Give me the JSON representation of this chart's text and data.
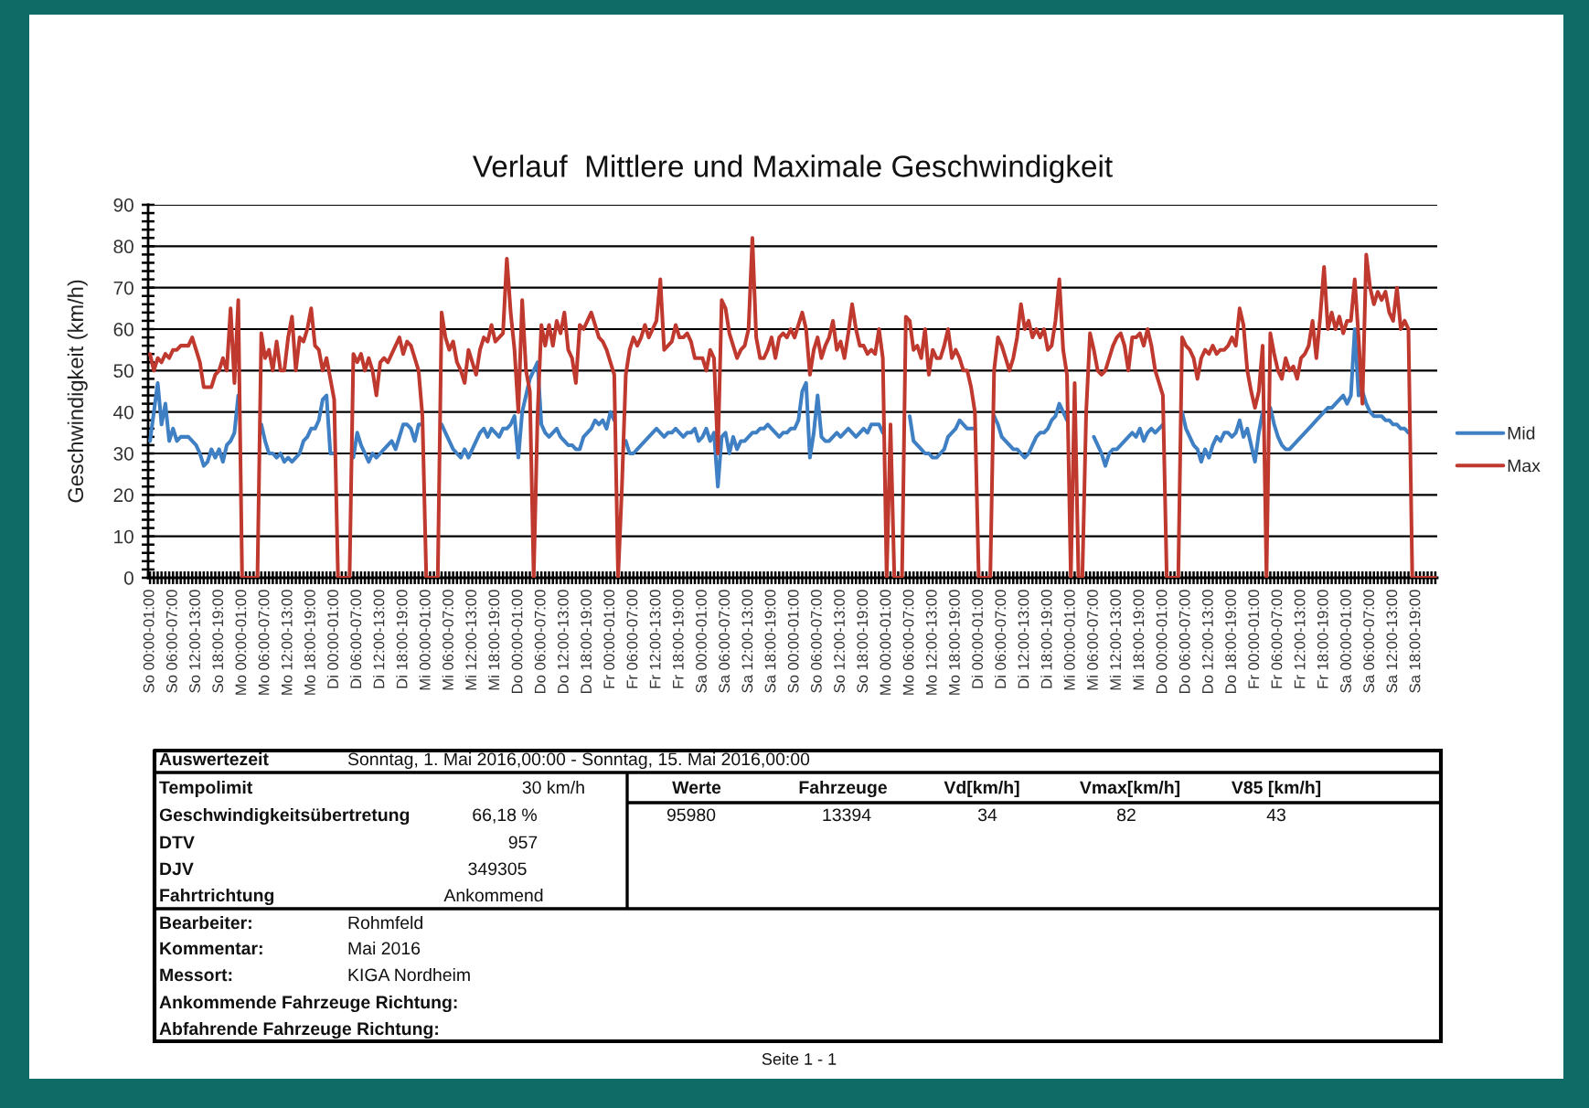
{
  "chart_data": [
    {
      "type": "line",
      "title": "Verlauf  Mittlere und Maximale Geschwindigkeit",
      "ylabel": "Geschwindigkeit (km/h)",
      "categories": [
        "So 00:00-01:00",
        null,
        null,
        null,
        null,
        null,
        "So 06:00-07:00",
        null,
        null,
        null,
        null,
        null,
        "So 12:00-13:00",
        null,
        null,
        null,
        null,
        null,
        "So 18:00-19:00",
        null,
        null,
        null,
        null,
        null,
        "Mo 00:00-01:00",
        null,
        null,
        null,
        null,
        null,
        "Mo 06:00-07:00",
        null,
        null,
        null,
        null,
        null,
        "Mo 12:00-13:00",
        null,
        null,
        null,
        null,
        null,
        "Mo 18:00-19:00",
        null,
        null,
        null,
        null,
        null,
        "Di 00:00-01:00",
        null,
        null,
        null,
        null,
        null,
        "Di 06:00-07:00",
        null,
        null,
        null,
        null,
        null,
        "Di 12:00-13:00",
        null,
        null,
        null,
        null,
        null,
        "Di 18:00-19:00",
        null,
        null,
        null,
        null,
        null,
        "Mi 00:00-01:00",
        null,
        null,
        null,
        null,
        null,
        "Mi 06:00-07:00",
        null,
        null,
        null,
        null,
        null,
        "Mi 12:00-13:00",
        null,
        null,
        null,
        null,
        null,
        "Mi 18:00-19:00",
        null,
        null,
        null,
        null,
        null,
        "Do 00:00-01:00",
        null,
        null,
        null,
        null,
        null,
        "Do 06:00-07:00",
        null,
        null,
        null,
        null,
        null,
        "Do 12:00-13:00",
        null,
        null,
        null,
        null,
        null,
        "Do 18:00-19:00",
        null,
        null,
        null,
        null,
        null,
        "Fr 00:00-01:00",
        null,
        null,
        null,
        null,
        null,
        "Fr 06:00-07:00",
        null,
        null,
        null,
        null,
        null,
        "Fr 12:00-13:00",
        null,
        null,
        null,
        null,
        null,
        "Fr 18:00-19:00",
        null,
        null,
        null,
        null,
        null,
        "Sa 00:00-01:00",
        null,
        null,
        null,
        null,
        null,
        "Sa 06:00-07:00",
        null,
        null,
        null,
        null,
        null,
        "Sa 12:00-13:00",
        null,
        null,
        null,
        null,
        null,
        "Sa 18:00-19:00",
        null,
        null,
        null,
        null,
        null,
        "So 00:00-01:00",
        null,
        null,
        null,
        null,
        null,
        "So 06:00-07:00",
        null,
        null,
        null,
        null,
        null,
        "So 12:00-13:00",
        null,
        null,
        null,
        null,
        null,
        "So 18:00-19:00",
        null,
        null,
        null,
        null,
        null,
        "Mo 00:00-01:00",
        null,
        null,
        null,
        null,
        null,
        "Mo 06:00-07:00",
        null,
        null,
        null,
        null,
        null,
        "Mo 12:00-13:00",
        null,
        null,
        null,
        null,
        null,
        "Mo 18:00-19:00",
        null,
        null,
        null,
        null,
        null,
        "Di 00:00-01:00",
        null,
        null,
        null,
        null,
        null,
        "Di 06:00-07:00",
        null,
        null,
        null,
        null,
        null,
        "Di 12:00-13:00",
        null,
        null,
        null,
        null,
        null,
        "Di 18:00-19:00",
        null,
        null,
        null,
        null,
        null,
        "Mi 00:00-01:00",
        null,
        null,
        null,
        null,
        null,
        "Mi 06:00-07:00",
        null,
        null,
        null,
        null,
        null,
        "Mi 12:00-13:00",
        null,
        null,
        null,
        null,
        null,
        "Mi 18:00-19:00",
        null,
        null,
        null,
        null,
        null,
        "Do 00:00-01:00",
        null,
        null,
        null,
        null,
        null,
        "Do 06:00-07:00",
        null,
        null,
        null,
        null,
        null,
        "Do 12:00-13:00",
        null,
        null,
        null,
        null,
        null,
        "Do 18:00-19:00",
        null,
        null,
        null,
        null,
        null,
        "Fr 00:00-01:00",
        null,
        null,
        null,
        null,
        null,
        "Fr 06:00-07:00",
        null,
        null,
        null,
        null,
        null,
        "Fr 12:00-13:00",
        null,
        null,
        null,
        null,
        null,
        "Fr 18:00-19:00",
        null,
        null,
        null,
        null,
        null,
        "Sa 00:00-01:00",
        null,
        null,
        null,
        null,
        null,
        "Sa 06:00-07:00",
        null,
        null,
        null,
        null,
        null,
        "Sa 12:00-13:00",
        null,
        null,
        null,
        null,
        null,
        "Sa 18:00-19:00",
        null,
        null,
        null,
        null,
        null
      ],
      "ylim": [
        0,
        90
      ],
      "yticks": [
        0,
        10,
        20,
        30,
        40,
        50,
        60,
        70,
        80,
        90
      ],
      "grid": "y",
      "legend": "right",
      "series": [
        {
          "name": "Mid",
          "color": "#3f7fc4",
          "values": [
            33,
            40,
            47,
            37,
            42,
            33,
            36,
            33,
            34,
            34,
            34,
            33,
            32,
            30,
            27,
            28,
            31,
            29,
            31,
            28,
            32,
            33,
            35,
            44,
            null,
            null,
            null,
            null,
            null,
            37,
            33,
            30,
            30,
            29,
            30,
            28,
            29,
            28,
            29,
            30,
            33,
            34,
            36,
            36,
            38,
            43,
            44,
            30,
            30,
            null,
            null,
            null,
            null,
            29,
            35,
            32,
            30,
            28,
            30,
            29,
            30,
            31,
            32,
            33,
            31,
            34,
            37,
            37,
            36,
            33,
            37,
            37,
            null,
            null,
            null,
            null,
            37,
            35,
            33,
            31,
            30,
            29,
            31,
            29,
            31,
            33,
            35,
            36,
            34,
            36,
            35,
            34,
            36,
            36,
            37,
            39,
            29,
            40,
            44,
            48,
            50,
            52,
            37,
            35,
            34,
            35,
            36,
            34,
            33,
            32,
            32,
            31,
            31,
            34,
            35,
            36,
            38,
            37,
            38,
            36,
            40,
            38,
            null,
            null,
            33,
            30,
            30,
            31,
            32,
            33,
            34,
            35,
            36,
            35,
            34,
            35,
            35,
            36,
            35,
            34,
            35,
            35,
            36,
            33,
            34,
            36,
            33,
            35,
            22,
            34,
            35,
            30,
            34,
            31,
            33,
            33,
            34,
            35,
            35,
            36,
            36,
            37,
            36,
            35,
            34,
            35,
            35,
            36,
            36,
            38,
            45,
            47,
            29,
            35,
            44,
            34,
            33,
            33,
            34,
            35,
            34,
            35,
            36,
            35,
            34,
            35,
            36,
            35,
            37,
            37,
            37,
            35,
            null,
            null,
            null,
            null,
            null,
            null,
            39,
            33,
            32,
            31,
            30,
            30,
            29,
            29,
            30,
            31,
            34,
            35,
            36,
            38,
            37,
            36,
            36,
            36,
            null,
            null,
            null,
            null,
            39,
            37,
            34,
            33,
            32,
            31,
            31,
            30,
            29,
            30,
            32,
            34,
            35,
            35,
            36,
            38,
            39,
            42,
            40,
            38,
            null,
            null,
            null,
            null,
            null,
            null,
            34,
            32,
            30,
            27,
            30,
            31,
            31,
            32,
            33,
            34,
            35,
            34,
            36,
            33,
            35,
            36,
            35,
            36,
            37,
            null,
            null,
            null,
            null,
            40,
            36,
            34,
            32,
            31,
            28,
            31,
            29,
            32,
            34,
            33,
            35,
            35,
            34,
            35,
            38,
            34,
            36,
            32,
            28,
            35,
            40,
            null,
            41,
            37,
            34,
            32,
            31,
            31,
            32,
            33,
            34,
            35,
            36,
            37,
            38,
            39,
            40,
            41,
            41,
            42,
            43,
            44,
            42,
            44,
            60,
            44,
            45,
            42,
            40,
            39,
            39,
            39,
            38,
            38,
            37,
            37,
            36,
            36,
            35,
            null,
            null,
            null,
            null,
            null,
            null,
            null
          ]
        },
        {
          "name": "Max",
          "color": "#c0392f",
          "values": [
            54,
            50,
            53,
            52,
            54,
            53,
            55,
            55,
            56,
            56,
            56,
            58,
            55,
            52,
            46,
            46,
            46,
            49,
            50,
            53,
            50,
            65,
            47,
            67,
            0,
            0,
            0,
            0,
            0,
            59,
            53,
            55,
            50,
            57,
            50,
            50,
            58,
            63,
            50,
            58,
            57,
            60,
            65,
            56,
            55,
            50,
            53,
            48,
            43,
            0,
            0,
            0,
            0,
            54,
            52,
            54,
            50,
            53,
            50,
            44,
            52,
            53,
            52,
            54,
            56,
            58,
            54,
            57,
            56,
            53,
            50,
            39,
            0,
            0,
            0,
            0,
            64,
            58,
            55,
            57,
            52,
            50,
            47,
            55,
            52,
            49,
            55,
            58,
            57,
            61,
            57,
            58,
            59,
            77,
            64,
            55,
            40,
            67,
            50,
            45,
            0,
            39,
            61,
            56,
            61,
            56,
            62,
            59,
            64,
            55,
            53,
            47,
            61,
            60,
            62,
            64,
            61,
            58,
            57,
            55,
            52,
            49,
            0,
            22,
            49,
            55,
            58,
            56,
            58,
            61,
            58,
            60,
            62,
            72,
            55,
            56,
            57,
            61,
            58,
            58,
            59,
            57,
            53,
            53,
            53,
            50,
            55,
            53,
            30,
            67,
            65,
            59,
            56,
            53,
            55,
            56,
            60,
            82,
            58,
            53,
            53,
            55,
            58,
            53,
            58,
            59,
            58,
            60,
            58,
            61,
            64,
            60,
            49,
            55,
            58,
            53,
            56,
            58,
            62,
            55,
            57,
            53,
            59,
            66,
            60,
            56,
            56,
            54,
            55,
            54,
            60,
            53,
            0,
            37,
            0,
            0,
            0,
            63,
            62,
            55,
            56,
            53,
            60,
            49,
            55,
            53,
            53,
            56,
            60,
            53,
            55,
            53,
            50,
            50,
            46,
            40,
            0,
            0,
            0,
            0,
            50,
            58,
            56,
            53,
            50,
            53,
            58,
            66,
            60,
            62,
            58,
            60,
            58,
            60,
            55,
            56,
            62,
            72,
            55,
            49,
            0,
            47,
            0,
            0,
            40,
            59,
            55,
            50,
            49,
            50,
            53,
            56,
            58,
            59,
            56,
            50,
            58,
            58,
            59,
            56,
            60,
            56,
            50,
            47,
            44,
            0,
            0,
            0,
            0,
            58,
            56,
            55,
            53,
            48,
            53,
            55,
            54,
            56,
            54,
            55,
            55,
            56,
            58,
            56,
            65,
            61,
            50,
            45,
            41,
            45,
            56,
            0,
            59,
            54,
            50,
            48,
            53,
            50,
            51,
            48,
            53,
            54,
            56,
            62,
            53,
            63,
            75,
            60,
            64,
            60,
            63,
            59,
            62,
            62,
            72,
            58,
            42,
            78,
            70,
            66,
            69,
            67,
            69,
            64,
            62,
            70,
            60,
            62,
            60,
            0,
            0,
            0,
            0,
            0,
            0,
            0
          ]
        }
      ]
    },
    {
      "type": "other",
      "annotations": [
        "Auswertezeit",
        "Sonntag, 1. Mai 2016,00:00 - Sonntag, 15. Mai 2016,00:00",
        "Tempolimit",
        "30 km/h",
        "Geschwindigkeitsübertretung",
        "66,18 %",
        "DTV",
        "957",
        "DJV",
        "349305",
        "Fahrtrichtung",
        "Ankommend",
        "Werte",
        "Fahrzeuge",
        "Vd[km/h]",
        "Vmax[km/h]",
        "V85 [km/h]",
        "95980",
        "13394",
        "34",
        "82",
        "43",
        "Bearbeiter:",
        "Rohmfeld",
        "Kommentar:",
        "Mai 2016",
        "Messort:",
        "KIGA Nordheim",
        "Ankommende Fahrzeuge Richtung:",
        "Abfahrende Fahrzeuge Richtung:",
        "Seite 1 - 1"
      ]
    }
  ]
}
